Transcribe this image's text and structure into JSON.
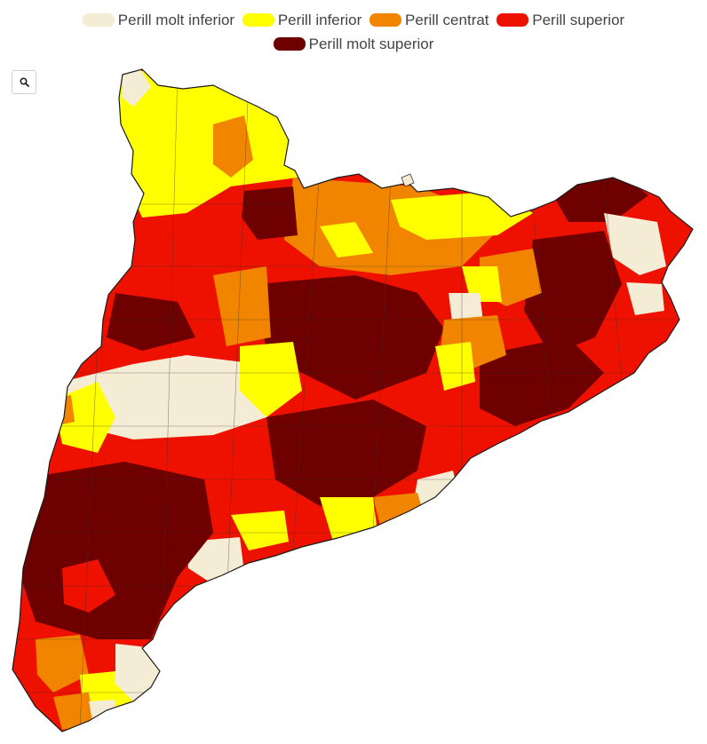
{
  "legend": {
    "items": [
      {
        "label": "Perill molt inferior",
        "color": "#f5ecd6"
      },
      {
        "label": "Perill inferior",
        "color": "#ffff00"
      },
      {
        "label": "Perill centrat",
        "color": "#f28500"
      },
      {
        "label": "Perill superior",
        "color": "#ee1100"
      },
      {
        "label": "Perill molt superior",
        "color": "#6e0000"
      }
    ]
  },
  "toolbar": {
    "zoom_icon": "search-icon"
  }
}
